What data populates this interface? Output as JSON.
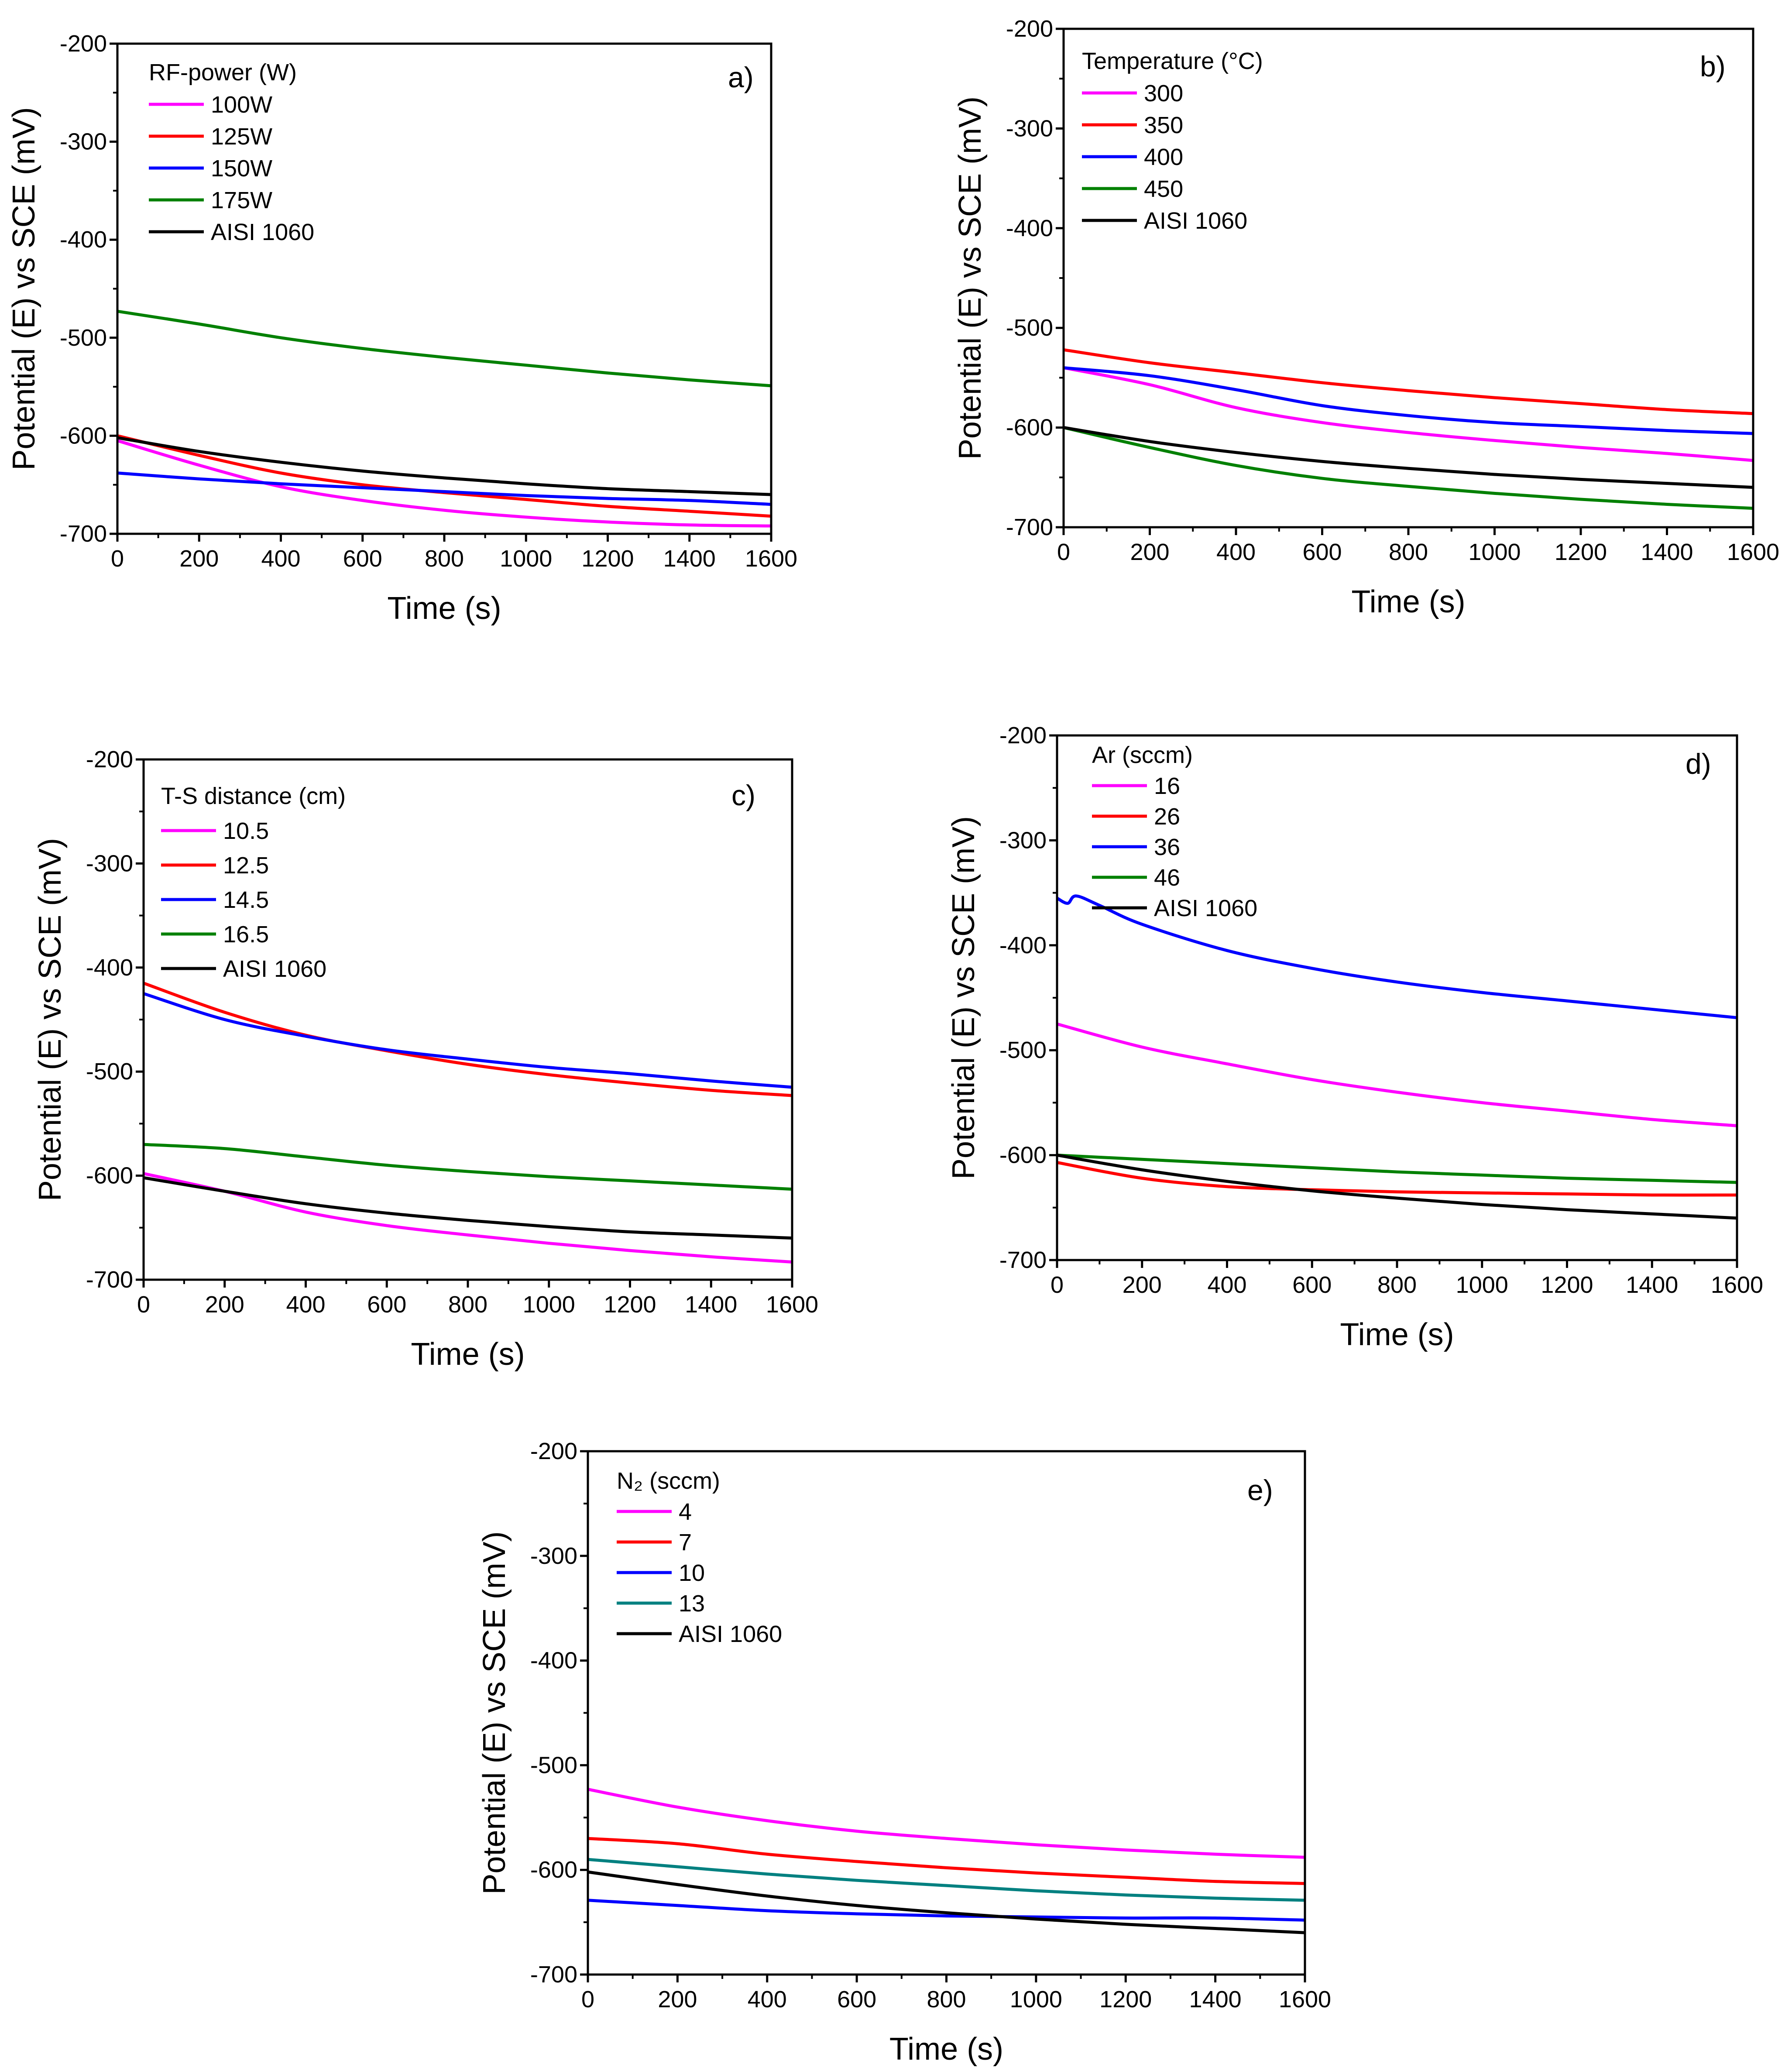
{
  "chart_data": [
    {
      "type": "line",
      "panel_label": "a)",
      "xlabel": "Time (s)",
      "ylabel": "Potential (E) vs SCE (mV)",
      "xlim": [
        0,
        1600
      ],
      "ylim": [
        -700,
        -200
      ],
      "xticks": [
        0,
        200,
        400,
        600,
        800,
        1000,
        1200,
        1400,
        1600
      ],
      "yticks": [
        -700,
        -600,
        -500,
        -400,
        -300,
        -200
      ],
      "legend_title": "RF-power (W)",
      "legend_position": "top-left",
      "x": [
        0,
        200,
        400,
        600,
        800,
        1000,
        1200,
        1400,
        1600
      ],
      "series": [
        {
          "name": "100W",
          "color": "#ff00ff",
          "values": [
            -605,
            -630,
            -652,
            -666,
            -676,
            -683,
            -688,
            -691,
            -692
          ]
        },
        {
          "name": "125W",
          "color": "#ff0000",
          "values": [
            -600,
            -620,
            -638,
            -650,
            -658,
            -665,
            -672,
            -677,
            -682
          ]
        },
        {
          "name": "150W",
          "color": "#0000ff",
          "values": [
            -638,
            -644,
            -649,
            -653,
            -657,
            -661,
            -664,
            -666,
            -670
          ]
        },
        {
          "name": "175W",
          "color": "#008000",
          "values": [
            -473,
            -486,
            -500,
            -511,
            -520,
            -528,
            -536,
            -543,
            -549
          ]
        },
        {
          "name": "AISI 1060",
          "color": "#000000",
          "values": [
            -602,
            -616,
            -627,
            -636,
            -643,
            -649,
            -654,
            -657,
            -660
          ]
        }
      ]
    },
    {
      "type": "line",
      "panel_label": "b)",
      "xlabel": "Time (s)",
      "ylabel": "Potential (E) vs SCE (mV)",
      "xlim": [
        0,
        1600
      ],
      "ylim": [
        -700,
        -200
      ],
      "xticks": [
        0,
        200,
        400,
        600,
        800,
        1000,
        1200,
        1400,
        1600
      ],
      "yticks": [
        -700,
        -600,
        -500,
        -400,
        -300,
        -200
      ],
      "legend_title": "Temperature (°C)",
      "legend_position": "top-left",
      "x": [
        0,
        200,
        400,
        600,
        800,
        1000,
        1200,
        1400,
        1600
      ],
      "series": [
        {
          "name": "300",
          "color": "#ff00ff",
          "values": [
            -540,
            -557,
            -580,
            -595,
            -605,
            -613,
            -620,
            -626,
            -633
          ]
        },
        {
          "name": "350",
          "color": "#ff0000",
          "values": [
            -522,
            -535,
            -545,
            -555,
            -563,
            -570,
            -576,
            -582,
            -586
          ]
        },
        {
          "name": "400",
          "color": "#0000ff",
          "values": [
            -540,
            -548,
            -562,
            -578,
            -588,
            -595,
            -599,
            -603,
            -606
          ]
        },
        {
          "name": "450",
          "color": "#008000",
          "values": [
            -600,
            -620,
            -638,
            -651,
            -659,
            -666,
            -672,
            -677,
            -681
          ]
        },
        {
          "name": "AISI 1060",
          "color": "#000000",
          "values": [
            -600,
            -614,
            -625,
            -634,
            -641,
            -647,
            -652,
            -656,
            -660
          ]
        }
      ]
    },
    {
      "type": "line",
      "panel_label": "c)",
      "xlabel": "Time (s)",
      "ylabel": "Potential (E) vs SCE (mV)",
      "xlim": [
        0,
        1600
      ],
      "ylim": [
        -700,
        -200
      ],
      "xticks": [
        0,
        200,
        400,
        600,
        800,
        1000,
        1200,
        1400,
        1600
      ],
      "yticks": [
        -700,
        -600,
        -500,
        -400,
        -300,
        -200
      ],
      "legend_title": "T-S distance (cm)",
      "legend_position": "top-left",
      "x": [
        0,
        200,
        400,
        600,
        800,
        1000,
        1200,
        1400,
        1600
      ],
      "series": [
        {
          "name": "10.5",
          "color": "#ff00ff",
          "values": [
            -598,
            -615,
            -635,
            -648,
            -657,
            -665,
            -672,
            -678,
            -683
          ]
        },
        {
          "name": "12.5",
          "color": "#ff0000",
          "values": [
            -415,
            -443,
            -465,
            -480,
            -493,
            -503,
            -511,
            -518,
            -523
          ]
        },
        {
          "name": "14.5",
          "color": "#0000ff",
          "values": [
            -425,
            -450,
            -466,
            -479,
            -488,
            -496,
            -502,
            -509,
            -515
          ]
        },
        {
          "name": "16.5",
          "color": "#008000",
          "values": [
            -570,
            -574,
            -582,
            -590,
            -596,
            -601,
            -605,
            -609,
            -613
          ]
        },
        {
          "name": "AISI 1060",
          "color": "#000000",
          "values": [
            -602,
            -615,
            -627,
            -636,
            -643,
            -649,
            -654,
            -657,
            -660
          ]
        }
      ]
    },
    {
      "type": "line",
      "panel_label": "d)",
      "xlabel": "Time (s)",
      "ylabel": "Potential (E) vs SCE (mV)",
      "xlim": [
        0,
        1600
      ],
      "ylim": [
        -700,
        -200
      ],
      "xticks": [
        0,
        200,
        400,
        600,
        800,
        1000,
        1200,
        1400,
        1600
      ],
      "yticks": [
        -700,
        -600,
        -500,
        -400,
        -300,
        -200
      ],
      "legend_title": "Ar (sccm)",
      "legend_position": "top-left",
      "x": [
        0,
        200,
        400,
        600,
        800,
        1000,
        1200,
        1400,
        1600
      ],
      "series": [
        {
          "name": "16",
          "color": "#ff00ff",
          "values": [
            -475,
            -497,
            -513,
            -528,
            -540,
            -550,
            -558,
            -566,
            -572
          ]
        },
        {
          "name": "26",
          "color": "#ff0000",
          "values": [
            -607,
            -622,
            -630,
            -633,
            -635,
            -636,
            -637,
            -638,
            -638
          ]
        },
        {
          "name": "36",
          "color": "#0000ff",
          "values": [
            -355,
            -380,
            -405,
            -422,
            -435,
            -445,
            -453,
            -461,
            -469
          ]
        },
        {
          "name": "46",
          "color": "#008000",
          "values": [
            -600,
            -604,
            -608,
            -612,
            -616,
            -619,
            -622,
            -624,
            -626
          ]
        },
        {
          "name": "AISI 1060",
          "color": "#000000",
          "values": [
            -600,
            -614,
            -625,
            -634,
            -641,
            -647,
            -652,
            -656,
            -660
          ]
        }
      ]
    },
    {
      "type": "line",
      "panel_label": "e)",
      "xlabel": "Time (s)",
      "ylabel": "Potential (E) vs SCE (mV)",
      "xlim": [
        0,
        1600
      ],
      "ylim": [
        -700,
        -200
      ],
      "xticks": [
        0,
        200,
        400,
        600,
        800,
        1000,
        1200,
        1400,
        1600
      ],
      "yticks": [
        -700,
        -600,
        -500,
        -400,
        -300,
        -200
      ],
      "legend_title": "N₂ (sccm)",
      "legend_position": "top-left",
      "x": [
        0,
        200,
        400,
        600,
        800,
        1000,
        1200,
        1400,
        1600
      ],
      "series": [
        {
          "name": "4",
          "color": "#ff00ff",
          "values": [
            -523,
            -540,
            -553,
            -563,
            -570,
            -576,
            -581,
            -585,
            -588
          ]
        },
        {
          "name": "7",
          "color": "#ff0000",
          "values": [
            -570,
            -575,
            -585,
            -592,
            -598,
            -603,
            -607,
            -611,
            -613
          ]
        },
        {
          "name": "10",
          "color": "#0000ff",
          "values": [
            -629,
            -634,
            -639,
            -642,
            -644,
            -645,
            -646,
            -646,
            -648
          ]
        },
        {
          "name": "13",
          "color": "#008080",
          "values": [
            -590,
            -597,
            -604,
            -610,
            -615,
            -620,
            -624,
            -627,
            -629
          ]
        },
        {
          "name": "AISI 1060",
          "color": "#000000",
          "values": [
            -602,
            -614,
            -625,
            -634,
            -641,
            -647,
            -652,
            -656,
            -660
          ]
        }
      ]
    }
  ]
}
